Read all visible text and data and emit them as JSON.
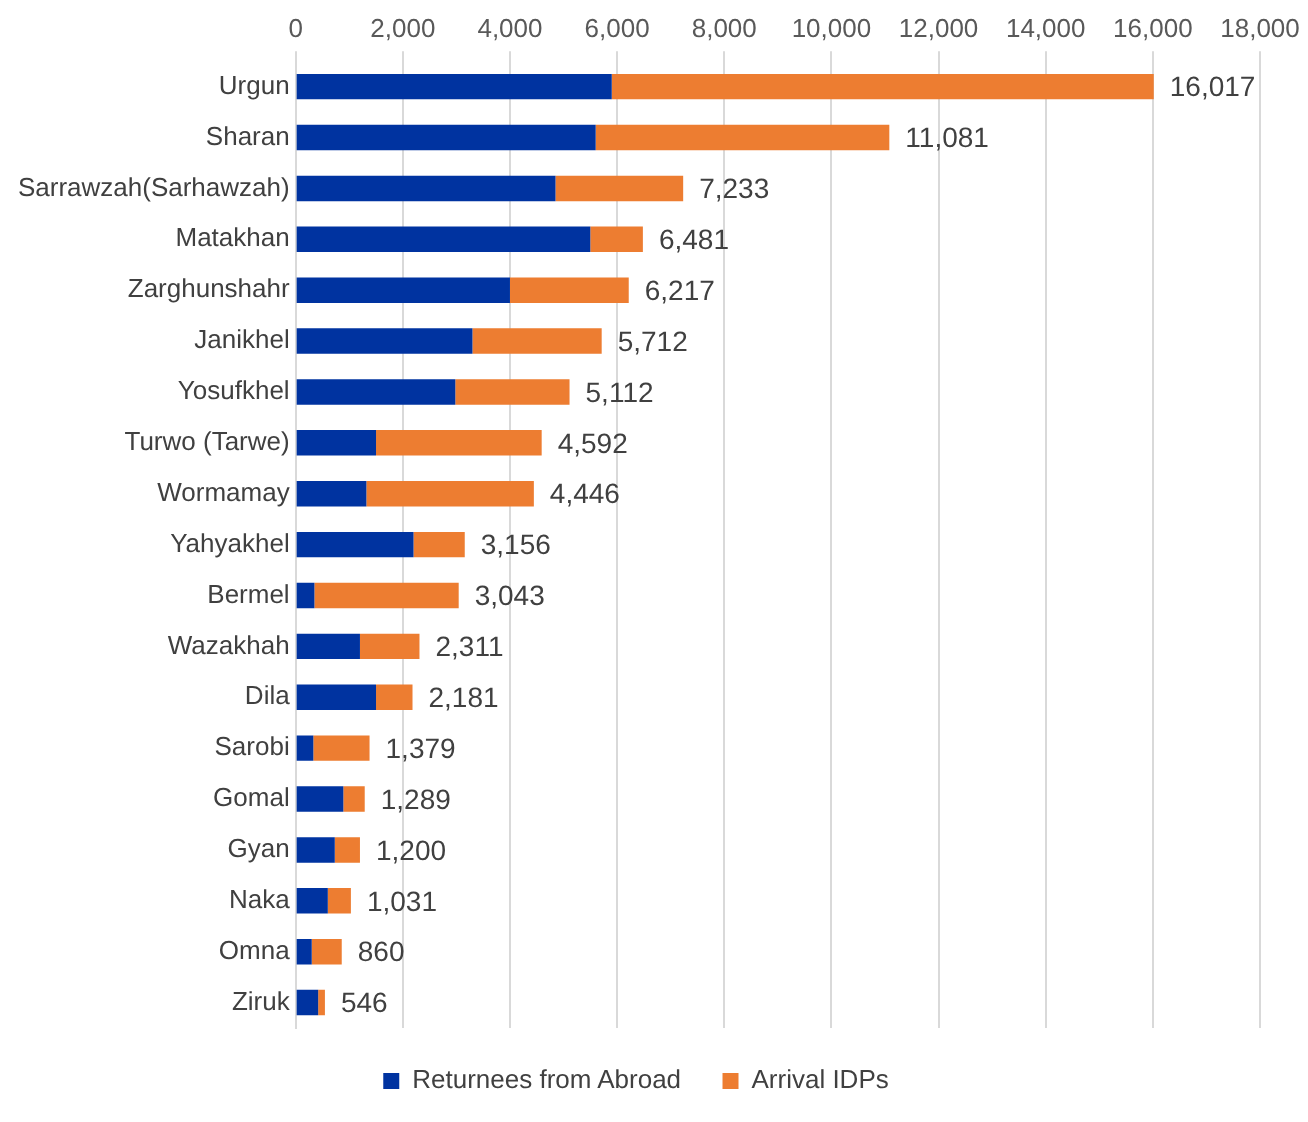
{
  "chart_data": {
    "type": "bar",
    "orientation": "horizontal",
    "stacked": true,
    "categories": [
      "Urgun",
      "Sharan",
      "Sarrawzah(Sarhawzah)",
      "Matakhan",
      "Zarghunshahr",
      "Janikhel",
      "Yosufkhel",
      "Turwo (Tarwe)",
      "Wormamay",
      "Yahyakhel",
      "Bermel",
      "Wazakhah",
      "Dila",
      "Sarobi",
      "Gomal",
      "Gyan",
      "Naka",
      "Omna",
      "Ziruk"
    ],
    "series": [
      {
        "name": "Returnees from Abroad",
        "color": "#0033a0",
        "values": [
          5900,
          5600,
          4850,
          5500,
          4000,
          3300,
          2980,
          1500,
          1320,
          2200,
          350,
          1200,
          1500,
          330,
          890,
          730,
          600,
          300,
          420
        ]
      },
      {
        "name": "Arrival IDPs",
        "color": "#ed7d31",
        "values": [
          10117,
          5481,
          2383,
          981,
          2217,
          2412,
          2132,
          3092,
          3126,
          956,
          2693,
          1111,
          681,
          1049,
          399,
          470,
          431,
          560,
          126
        ]
      }
    ],
    "totals": [
      "16,017",
      "11,081",
      "7,233",
      "6,481",
      "6,217",
      "5,712",
      "5,112",
      "4,592",
      "4,446",
      "3,156",
      "3,043",
      "2,311",
      "2,181",
      "1,379",
      "1,289",
      "1,200",
      "1,031",
      "860",
      "546"
    ],
    "xlim": [
      0,
      18000
    ],
    "xticks": [
      0,
      {
        "value": 2000,
        "label": "2,000"
      },
      {
        "value": 4000,
        "label": "4,000"
      },
      {
        "value": 6000,
        "label": "6,000"
      },
      {
        "value": 8000,
        "label": "8,000"
      },
      {
        "value": 10000,
        "label": "10,000"
      },
      {
        "value": 12000,
        "label": "12,000"
      },
      {
        "value": 14000,
        "label": "14,000"
      },
      {
        "value": 16000,
        "label": "16,000"
      },
      {
        "value": 18000,
        "label": "18,000"
      }
    ],
    "grid": "x",
    "legend": "bottom"
  }
}
